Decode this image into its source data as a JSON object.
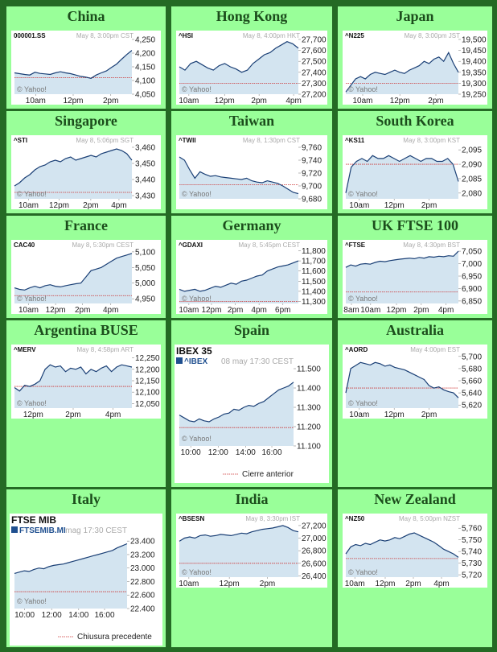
{
  "colors": {
    "cell_bg": "#99ff99",
    "border": "#246a24",
    "title": "#1c4d1c",
    "line": "#1a3f75",
    "fill": "#d3e4f0",
    "prev_close": "#cc3333",
    "accent_square": "#1f4f8f"
  },
  "markets": [
    {
      "title": "China",
      "style": "yahoo",
      "chart_data": {
        "type": "area",
        "symbol": "000001.SS",
        "info": "May 8, 3:00pm CST",
        "yticks": [
          "4,250",
          "4,200",
          "4,150",
          "4,100",
          "4,050"
        ],
        "ymin": 4050,
        "ymax": 4250,
        "xticks": [
          {
            "label": "10am",
            "x": 0.18
          },
          {
            "label": "12pm",
            "x": 0.5
          },
          {
            "label": "2pm",
            "x": 0.82
          }
        ],
        "prev_close": 4110,
        "values": [
          4128,
          4125,
          4122,
          4120,
          4130,
          4126,
          4124,
          4122,
          4128,
          4132,
          4128,
          4125,
          4120,
          4115,
          4112,
          4108,
          4120,
          4128,
          4135,
          4148,
          4160,
          4178,
          4195,
          4210
        ]
      }
    },
    {
      "title": "Hong Kong",
      "style": "yahoo",
      "chart_data": {
        "type": "area",
        "symbol": "^HSI",
        "info": "May 8, 4:00pm HKT",
        "yticks": [
          "27,700",
          "27,600",
          "27,500",
          "27,400",
          "27,300",
          "27,200"
        ],
        "ymin": 27200,
        "ymax": 27700,
        "xticks": [
          {
            "label": "10am",
            "x": 0.08
          },
          {
            "label": "12pm",
            "x": 0.38
          },
          {
            "label": "2pm",
            "x": 0.67
          },
          {
            "label": "4pm",
            "x": 0.96
          }
        ],
        "prev_close": 27300,
        "values": [
          27450,
          27420,
          27480,
          27500,
          27470,
          27440,
          27420,
          27460,
          27480,
          27450,
          27430,
          27400,
          27420,
          27480,
          27520,
          27560,
          27580,
          27620,
          27650,
          27680,
          27660,
          27620
        ]
      }
    },
    {
      "title": "Japan",
      "style": "yahoo",
      "chart_data": {
        "type": "area",
        "symbol": "^N225",
        "info": "May 8, 3:00pm JST",
        "yticks": [
          "19,500",
          "19,450",
          "19,400",
          "19,350",
          "19,300",
          "19,250"
        ],
        "ymin": 19250,
        "ymax": 19500,
        "xticks": [
          {
            "label": "10am",
            "x": 0.15
          },
          {
            "label": "12pm",
            "x": 0.48
          },
          {
            "label": "2pm",
            "x": 0.8
          }
        ],
        "prev_close": 19300,
        "values": [
          19260,
          19290,
          19320,
          19330,
          19320,
          19340,
          19350,
          19345,
          19340,
          19350,
          19360,
          19350,
          19345,
          19360,
          19370,
          19380,
          19400,
          19390,
          19410,
          19420,
          19400,
          19440,
          19390,
          19350
        ]
      }
    },
    {
      "title": "Singapore",
      "style": "yahoo",
      "chart_data": {
        "type": "area",
        "symbol": "^STI",
        "info": "May 8, 5:06pm SGT",
        "yticks": [
          "3,460",
          "3,450",
          "3,440",
          "3,430"
        ],
        "ymin": 3428,
        "ymax": 3462,
        "xticks": [
          {
            "label": "10am",
            "x": 0.12
          },
          {
            "label": "12pm",
            "x": 0.38
          },
          {
            "label": "2pm",
            "x": 0.65
          },
          {
            "label": "4pm",
            "x": 0.89
          }
        ],
        "prev_close": 3432,
        "values": [
          3436,
          3438,
          3441,
          3443,
          3446,
          3448,
          3449,
          3451,
          3452,
          3451,
          3453,
          3454,
          3452,
          3453,
          3454,
          3455,
          3454,
          3456,
          3457,
          3458,
          3459,
          3458,
          3456,
          3452
        ]
      }
    },
    {
      "title": "Taiwan",
      "style": "yahoo",
      "chart_data": {
        "type": "area",
        "symbol": "^TWII",
        "info": "May 8, 1:30pm CST",
        "yticks": [
          "9,760",
          "9,740",
          "9,720",
          "9,700",
          "9,680"
        ],
        "ymin": 9680,
        "ymax": 9765,
        "xticks": [],
        "prev_close": 9702,
        "values": [
          9745,
          9740,
          9725,
          9712,
          9722,
          9718,
          9715,
          9716,
          9714,
          9713,
          9712,
          9711,
          9710,
          9712,
          9708,
          9706,
          9705,
          9708,
          9706,
          9704,
          9700,
          9695,
          9690,
          9688
        ]
      }
    },
    {
      "title": "South Korea",
      "style": "yahoo",
      "chart_data": {
        "type": "area",
        "symbol": "^KS11",
        "info": "May 8, 3:00pm KST",
        "yticks": [
          "2,095",
          "2,090",
          "2,085",
          "2,080"
        ],
        "ymin": 2078,
        "ymax": 2097,
        "xticks": [
          {
            "label": "10am",
            "x": 0.12
          },
          {
            "label": "12pm",
            "x": 0.43
          },
          {
            "label": "2pm",
            "x": 0.74
          }
        ],
        "prev_close": 2090,
        "values": [
          2080,
          2089,
          2091,
          2092,
          2091,
          2093,
          2092,
          2092,
          2093,
          2092,
          2091,
          2092,
          2093,
          2092,
          2091,
          2092,
          2092,
          2091,
          2091,
          2092,
          2090,
          2084
        ]
      }
    },
    {
      "title": "France",
      "style": "yahoo",
      "chart_data": {
        "type": "area",
        "symbol": "CAC40",
        "info": "May 8, 5:30pm CEST",
        "yticks": [
          "5,100",
          "5,050",
          "5,000",
          "4,950"
        ],
        "ymin": 4935,
        "ymax": 5110,
        "xticks": [
          {
            "label": "10am",
            "x": 0.12
          },
          {
            "label": "12pm",
            "x": 0.35
          },
          {
            "label": "2pm",
            "x": 0.58
          },
          {
            "label": "4pm",
            "x": 0.82
          }
        ],
        "prev_close": 4960,
        "values": [
          4985,
          4980,
          4978,
          4985,
          4990,
          4985,
          4992,
          4995,
          4990,
          4988,
          4992,
          4995,
          4998,
          5000,
          5020,
          5040,
          5045,
          5050,
          5060,
          5070,
          5080,
          5085,
          5090,
          5095
        ]
      }
    },
    {
      "title": "Germany",
      "style": "yahoo",
      "chart_data": {
        "type": "area",
        "symbol": "^GDAXI",
        "info": "May 8, 5:45pm CEST",
        "yticks": [
          "11,800",
          "11,700",
          "11,600",
          "11,500",
          "11,400",
          "11,300"
        ],
        "ymin": 11280,
        "ymax": 11820,
        "xticks": [
          {
            "label": "10am",
            "x": 0.08
          },
          {
            "label": "12pm",
            "x": 0.27
          },
          {
            "label": "2pm",
            "x": 0.47
          },
          {
            "label": "4pm",
            "x": 0.67
          },
          {
            "label": "6pm",
            "x": 0.87
          }
        ],
        "prev_close": 11300,
        "values": [
          11420,
          11400,
          11410,
          11420,
          11400,
          11410,
          11430,
          11450,
          11440,
          11460,
          11480,
          11470,
          11500,
          11510,
          11530,
          11550,
          11560,
          11600,
          11620,
          11640,
          11650,
          11660,
          11680,
          11700
        ]
      }
    },
    {
      "title": "UK FTSE 100",
      "style": "yahoo",
      "chart_data": {
        "type": "area",
        "symbol": "^FTSE",
        "info": "May 8, 4:30pm BST",
        "yticks": [
          "7,050",
          "7,000",
          "6,950",
          "6,900",
          "6,850"
        ],
        "ymin": 6840,
        "ymax": 7060,
        "xticks": [
          {
            "label": "8am",
            "x": 0.05
          },
          {
            "label": "10am",
            "x": 0.22
          },
          {
            "label": "12pm",
            "x": 0.45
          },
          {
            "label": "2pm",
            "x": 0.67
          },
          {
            "label": "4pm",
            "x": 0.89
          }
        ],
        "prev_close": 6886,
        "values": [
          6985,
          6995,
          6990,
          6998,
          7000,
          6998,
          7005,
          7010,
          7008,
          7012,
          7015,
          7018,
          7020,
          7022,
          7020,
          7025,
          7022,
          7028,
          7026,
          7030,
          7028,
          7032,
          7030,
          7050
        ]
      }
    },
    {
      "title": "Argentina BUSE",
      "style": "yahoo",
      "chart_data": {
        "type": "area",
        "symbol": "^MERV",
        "info": "May 8, 4:58pm ART",
        "yticks": [
          "12,250",
          "12,200",
          "12,150",
          "12,100",
          "12,050"
        ],
        "ymin": 12030,
        "ymax": 12270,
        "xticks": [
          {
            "label": "12pm",
            "x": 0.16
          },
          {
            "label": "2pm",
            "x": 0.5
          },
          {
            "label": "4pm",
            "x": 0.84
          }
        ],
        "prev_close": 12125,
        "values": [
          12120,
          12105,
          12130,
          12125,
          12135,
          12150,
          12200,
          12220,
          12210,
          12215,
          12190,
          12205,
          12200,
          12210,
          12180,
          12200,
          12190,
          12205,
          12215,
          12190,
          12210,
          12220,
          12215,
          12210
        ]
      }
    },
    {
      "title": "Spain",
      "style": "spanish",
      "chart_data": {
        "type": "area",
        "name": "IBEX 35",
        "symbol": "^IBEX",
        "info": "08 may 17:30 CEST",
        "yticks": [
          "11.500",
          "11.400",
          "11.300",
          "11.200",
          "11.100"
        ],
        "ymin": 11100,
        "ymax": 11500,
        "xticks": [
          {
            "label": "10:00",
            "x": 0.1
          },
          {
            "label": "12:00",
            "x": 0.34
          },
          {
            "label": "14:00",
            "x": 0.58
          },
          {
            "label": "16:00",
            "x": 0.81
          }
        ],
        "prev_close": 11195,
        "values": [
          11260,
          11245,
          11230,
          11225,
          11240,
          11230,
          11225,
          11240,
          11250,
          11265,
          11270,
          11290,
          11285,
          11300,
          11310,
          11305,
          11320,
          11330,
          11350,
          11370,
          11390,
          11400,
          11410,
          11430
        ],
        "legend": "Cierre anterior"
      }
    },
    {
      "title": "Australia",
      "style": "yahoo",
      "chart_data": {
        "type": "area",
        "symbol": "^AORD",
        "info": "May 4:00pm EST",
        "yticks": [
          "5,700",
          "5,680",
          "5,660",
          "5,640",
          "5,620"
        ],
        "ymin": 5615,
        "ymax": 5705,
        "xticks": [
          {
            "label": "10am",
            "x": 0.12
          },
          {
            "label": "12pm",
            "x": 0.43
          },
          {
            "label": "2pm",
            "x": 0.74
          }
        ],
        "prev_close": 5648,
        "values": [
          5640,
          5680,
          5685,
          5690,
          5688,
          5686,
          5690,
          5688,
          5684,
          5686,
          5682,
          5680,
          5678,
          5674,
          5670,
          5666,
          5662,
          5652,
          5648,
          5650,
          5645,
          5642,
          5640,
          5632
        ]
      }
    },
    {
      "title": "Italy",
      "style": "italian",
      "chart_data": {
        "type": "area",
        "name": "FTSE MIB",
        "symbol": "FTSEMIB.MI",
        "info": "mag 17:30 CEST",
        "yticks": [
          "23.400",
          "23.200",
          "23.000",
          "22.800",
          "22.600",
          "22.400"
        ],
        "ymin": 22400,
        "ymax": 23450,
        "xticks": [
          {
            "label": "10:00",
            "x": 0.09
          },
          {
            "label": "12:00",
            "x": 0.33
          },
          {
            "label": "14:00",
            "x": 0.57
          },
          {
            "label": "16:00",
            "x": 0.8
          }
        ],
        "prev_close": 22650,
        "values": [
          22920,
          22940,
          22960,
          22950,
          22980,
          23000,
          22990,
          23020,
          23040,
          23050,
          23060,
          23080,
          23100,
          23120,
          23140,
          23160,
          23180,
          23200,
          23220,
          23240,
          23260,
          23300,
          23330,
          23360
        ],
        "legend": "Chiusura precedente"
      }
    },
    {
      "title": "India",
      "style": "yahoo",
      "chart_data": {
        "type": "area",
        "symbol": "^BSESN",
        "info": "May 8, 3:30pm IST",
        "yticks": [
          "27,200",
          "27,000",
          "26,800",
          "26,600",
          "26,400"
        ],
        "ymin": 26380,
        "ymax": 27250,
        "xticks": [
          {
            "label": "10am",
            "x": 0.08
          },
          {
            "label": "12pm",
            "x": 0.42
          },
          {
            "label": "2pm",
            "x": 0.74
          }
        ],
        "prev_close": 26600,
        "values": [
          26950,
          27000,
          27020,
          27000,
          27040,
          27050,
          27030,
          27040,
          27060,
          27050,
          27040,
          27060,
          27080,
          27070,
          27100,
          27120,
          27140,
          27150,
          27160,
          27180,
          27200,
          27170,
          27120,
          27100
        ]
      }
    },
    {
      "title": "New Zealand",
      "style": "yahoo",
      "chart_data": {
        "type": "area",
        "symbol": "^NZ50",
        "info": "May 8, 5:00pm NZST",
        "yticks": [
          "5,760",
          "5,750",
          "5,740",
          "5,730",
          "5,720"
        ],
        "ymin": 5718,
        "ymax": 5765,
        "xticks": [
          {
            "label": "10am",
            "x": 0.08
          },
          {
            "label": "12pm",
            "x": 0.35
          },
          {
            "label": "2pm",
            "x": 0.6
          },
          {
            "label": "4pm",
            "x": 0.85
          }
        ],
        "prev_close": 5734,
        "values": [
          5738,
          5744,
          5746,
          5745,
          5747,
          5746,
          5748,
          5750,
          5749,
          5750,
          5752,
          5751,
          5753,
          5755,
          5756,
          5754,
          5752,
          5750,
          5748,
          5745,
          5742,
          5740,
          5738,
          5735
        ]
      }
    }
  ]
}
